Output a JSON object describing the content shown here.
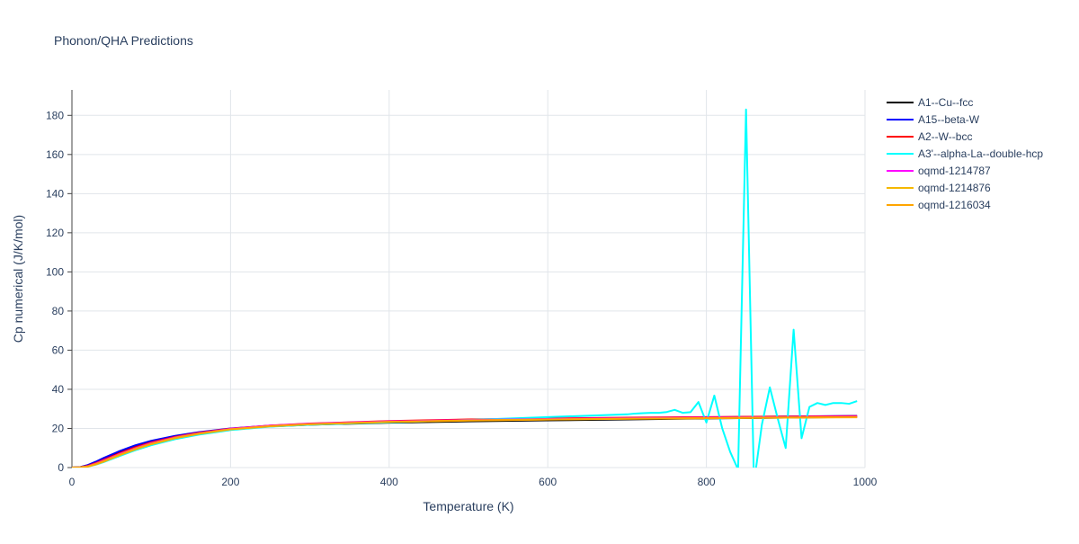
{
  "chart_data": {
    "type": "line",
    "title": "Phonon/QHA Predictions",
    "x_label": "Temperature (K)",
    "y_label": "Cp numerical (J/K/mol)",
    "xlim": [
      0,
      1000
    ],
    "ylim": [
      0,
      193
    ],
    "xticks": [
      0,
      200,
      400,
      600,
      800,
      1000
    ],
    "yticks": [
      0,
      20,
      40,
      60,
      80,
      100,
      120,
      140,
      160,
      180
    ],
    "grid": true,
    "series": [
      {
        "name": "A1--Cu--fcc",
        "color": "#000000",
        "x": [
          0,
          10,
          20,
          30,
          40,
          60,
          80,
          100,
          130,
          160,
          200,
          250,
          300,
          400,
          500,
          600,
          700,
          800,
          900,
          990
        ],
        "values": [
          0,
          0.2,
          1.2,
          2.8,
          4.6,
          8.0,
          11.0,
          13.4,
          16.0,
          17.9,
          19.7,
          21.0,
          21.9,
          22.9,
          23.6,
          24.1,
          24.6,
          25.1,
          25.5,
          25.9
        ]
      },
      {
        "name": "A15--beta-W",
        "color": "#0000ff",
        "x": [
          0,
          10,
          20,
          30,
          40,
          60,
          80,
          100,
          130,
          160,
          200,
          250,
          300,
          400,
          500,
          600,
          700,
          800,
          900,
          990
        ],
        "values": [
          0,
          0.2,
          1.3,
          3.0,
          4.9,
          8.4,
          11.4,
          13.7,
          16.2,
          18.1,
          20.0,
          21.4,
          22.3,
          23.4,
          24.2,
          24.8,
          25.3,
          25.7,
          26.1,
          26.4
        ]
      },
      {
        "name": "A2--W--bcc",
        "color": "#ff0000",
        "x": [
          0,
          10,
          20,
          30,
          40,
          60,
          80,
          100,
          130,
          160,
          200,
          250,
          300,
          400,
          500,
          600,
          700,
          800,
          900,
          990
        ],
        "values": [
          0,
          0.1,
          0.9,
          2.3,
          4.0,
          7.3,
          10.4,
          12.9,
          15.7,
          17.8,
          19.9,
          21.5,
          22.5,
          23.8,
          24.6,
          25.1,
          25.5,
          25.8,
          26.1,
          26.3
        ]
      },
      {
        "name": "A3'--alpha-La--double-hcp",
        "color": "#00ffff",
        "x": [
          0,
          10,
          20,
          30,
          40,
          60,
          80,
          100,
          130,
          160,
          200,
          250,
          300,
          400,
          500,
          600,
          650,
          700,
          710,
          720,
          730,
          740,
          750,
          760,
          770,
          780,
          790,
          800,
          810,
          820,
          830,
          840,
          850,
          860,
          870,
          880,
          890,
          900,
          910,
          920,
          930,
          940,
          950,
          960,
          970,
          980,
          990
        ],
        "values": [
          0,
          0.1,
          0.5,
          1.5,
          2.8,
          5.9,
          8.9,
          11.4,
          14.5,
          16.8,
          19.2,
          20.9,
          21.9,
          23.1,
          24.3,
          25.8,
          26.5,
          27.2,
          27.6,
          27.8,
          28,
          28,
          28.4,
          29.5,
          28,
          28.3,
          33.5,
          23,
          36.8,
          20,
          8,
          -1,
          183,
          -8,
          22,
          41,
          25,
          10,
          70.5,
          15,
          31,
          33,
          32,
          33,
          33,
          32.6,
          34
        ]
      },
      {
        "name": "oqmd-1214787",
        "color": "#ff00ff",
        "x": [
          0,
          10,
          20,
          30,
          40,
          60,
          80,
          100,
          130,
          160,
          200,
          250,
          300,
          400,
          500,
          600,
          700,
          800,
          900,
          990
        ],
        "values": [
          0,
          0.1,
          0.7,
          2.0,
          3.6,
          6.9,
          9.9,
          12.5,
          15.4,
          17.6,
          19.8,
          21.4,
          22.4,
          23.6,
          24.3,
          24.8,
          25.2,
          25.5,
          25.8,
          26.0
        ]
      },
      {
        "name": "oqmd-1214876",
        "color": "#f5b800",
        "x": [
          0,
          10,
          20,
          30,
          40,
          60,
          80,
          100,
          130,
          160,
          200,
          250,
          300,
          400,
          500,
          600,
          700,
          800,
          900,
          990
        ],
        "values": [
          0,
          0.1,
          0.5,
          1.6,
          3.0,
          6.3,
          9.3,
          11.9,
          15.0,
          17.2,
          19.5,
          21.1,
          22.1,
          23.3,
          24.0,
          24.5,
          24.9,
          25.2,
          25.5,
          25.7
        ]
      },
      {
        "name": "oqmd-1216034",
        "color": "#ffa500",
        "x": [
          0,
          10,
          20,
          30,
          40,
          60,
          80,
          100,
          130,
          160,
          200,
          250,
          300,
          400,
          500,
          600,
          700,
          800,
          900,
          990
        ],
        "values": [
          0,
          0.1,
          0.6,
          1.8,
          3.3,
          6.6,
          9.6,
          12.2,
          15.2,
          17.4,
          19.6,
          21.2,
          22.2,
          23.4,
          24.1,
          24.6,
          25.0,
          25.3,
          25.6,
          25.8
        ]
      }
    ]
  }
}
